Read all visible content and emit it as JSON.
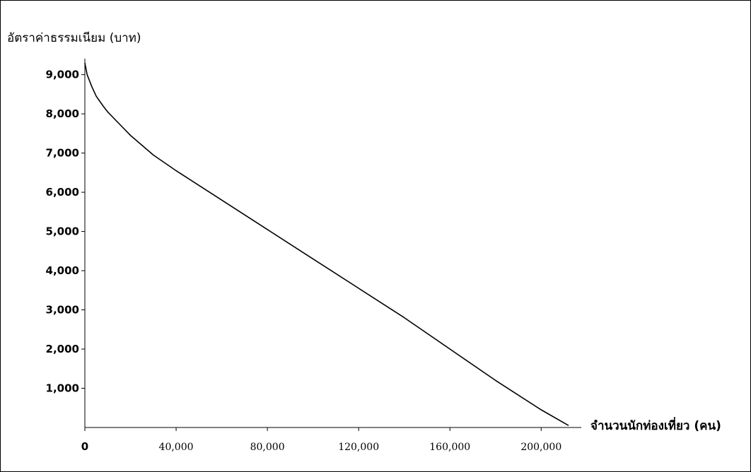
{
  "chart_data": {
    "type": "line",
    "ylabel": "อัตราค่าธรรมเนียม (บาท)",
    "xlabel": "จำนวนนักท่องเที่ยว (คน)",
    "xlim": [
      0,
      212000
    ],
    "ylim": [
      0,
      9300
    ],
    "x_ticks": [
      0,
      40000,
      80000,
      120000,
      160000,
      200000
    ],
    "x_tick_labels": [
      "0",
      "40,000",
      "80,000",
      "120,000",
      "160,000",
      "200,000"
    ],
    "y_ticks": [
      1000,
      2000,
      3000,
      4000,
      5000,
      6000,
      7000,
      8000,
      9000
    ],
    "y_tick_labels": [
      "1,000",
      "2,000",
      "3,000",
      "4,000",
      "5,000",
      "6,000",
      "7,000",
      "8,000",
      "9,000"
    ],
    "grid": false,
    "series": [
      {
        "x": [
          0,
          1000,
          3000,
          5000,
          8000,
          10000,
          15000,
          20000,
          25000,
          30000,
          40000,
          60000,
          80000,
          100000,
          120000,
          140000,
          160000,
          180000,
          200000,
          212000
        ],
        "y": [
          9300,
          9000,
          8700,
          8450,
          8200,
          8050,
          7750,
          7450,
          7200,
          6950,
          6550,
          5800,
          5050,
          4300,
          3550,
          2800,
          2000,
          1200,
          450,
          50
        ]
      }
    ]
  }
}
